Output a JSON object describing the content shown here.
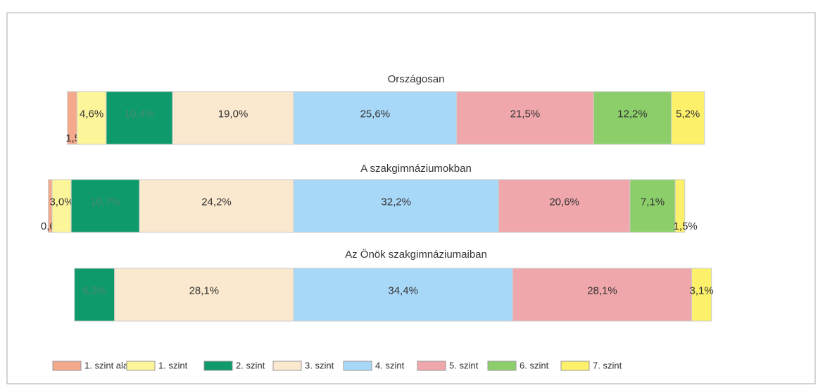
{
  "chart_data": {
    "type": "diverging-stacked-bar",
    "categories": [
      "Országosan",
      "A szakgimnáziumokban",
      "Az Önök szakgimnáziumaiban"
    ],
    "series": [
      {
        "name": "1. szint alatti",
        "color": "#f4a98c",
        "values": [
          1.5,
          0.6,
          0
        ],
        "value_labels": [
          "1,5%",
          "0,6%",
          null
        ]
      },
      {
        "name": "1. szint",
        "color": "#fdf59a",
        "values": [
          4.6,
          3.0,
          0
        ],
        "value_labels": [
          "4,6%",
          "3,0%",
          null
        ]
      },
      {
        "name": "2. szint",
        "color": "#0e9a6b",
        "values": [
          10.4,
          10.7,
          6.3
        ],
        "value_labels": [
          "10,4%",
          "10,7%",
          "6,3%"
        ]
      },
      {
        "name": "3. szint",
        "color": "#fbe9cf",
        "values": [
          19.0,
          24.2,
          28.1
        ],
        "value_labels": [
          "19,0%",
          "24,2%",
          "28,1%"
        ]
      },
      {
        "name": "4. szint",
        "color": "#a8d8f8",
        "values": [
          25.6,
          32.2,
          34.4
        ],
        "value_labels": [
          "25,6%",
          "32,2%",
          "34,4%"
        ]
      },
      {
        "name": "5. szint",
        "color": "#f0a7ab",
        "values": [
          21.5,
          20.6,
          28.1
        ],
        "value_labels": [
          "21,5%",
          "20,6%",
          "28,1%"
        ]
      },
      {
        "name": "6. szint",
        "color": "#8ccf6a",
        "values": [
          12.2,
          7.1,
          0
        ],
        "value_labels": [
          "12,2%",
          "7,1%",
          null
        ]
      },
      {
        "name": "7. szint",
        "color": "#fdf06a",
        "values": [
          5.2,
          1.5,
          3.1
        ],
        "value_labels": [
          "5,2%",
          "1,5%",
          "3,1%"
        ]
      }
    ],
    "diverge_after_series": 3,
    "legend": "bottom"
  }
}
